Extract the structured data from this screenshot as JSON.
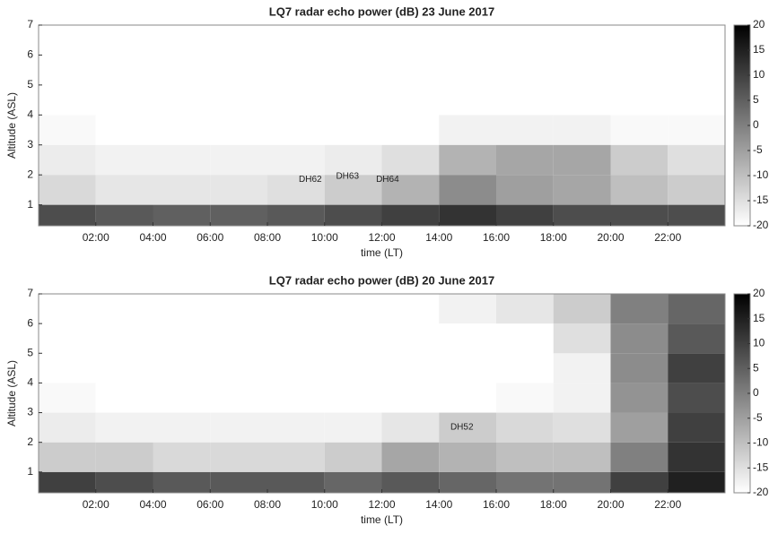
{
  "chart_data": [
    {
      "type": "heatmap",
      "title": "LQ7 radar echo power (dB) 23 June 2017",
      "xlabel": "time (LT)",
      "ylabel": "Altitude (ASL)",
      "xlim": [
        0,
        24
      ],
      "ylim": [
        0.3,
        7
      ],
      "xticks": [
        {
          "value": 2,
          "label": "02:00"
        },
        {
          "value": 4,
          "label": "04:00"
        },
        {
          "value": 6,
          "label": "06:00"
        },
        {
          "value": 8,
          "label": "08:00"
        },
        {
          "value": 10,
          "label": "10:00"
        },
        {
          "value": 12,
          "label": "12:00"
        },
        {
          "value": 14,
          "label": "14:00"
        },
        {
          "value": 16,
          "label": "16:00"
        },
        {
          "value": 18,
          "label": "18:00"
        },
        {
          "value": 20,
          "label": "20:00"
        },
        {
          "value": 22,
          "label": "22:00"
        }
      ],
      "yticks": [
        1,
        2,
        3,
        4,
        5,
        6,
        7
      ],
      "x_bins": [
        0,
        2,
        4,
        6,
        8,
        10,
        12,
        14,
        16,
        18,
        20,
        22,
        24
      ],
      "y_bins": [
        0.3,
        1,
        2,
        3,
        4,
        5,
        6,
        7
      ],
      "z": [
        [
          8,
          6,
          5,
          5,
          6,
          8,
          10,
          12,
          10,
          8,
          8,
          8
        ],
        [
          -14,
          -16,
          -16,
          -16,
          -15,
          -12,
          -8,
          -2,
          -5,
          -6,
          -10,
          -12
        ],
        [
          -17,
          -18,
          -18,
          -18,
          -18,
          -17,
          -15,
          -8,
          -6,
          -6,
          -12,
          -15
        ],
        [
          -19,
          -20,
          -20,
          -20,
          -20,
          -20,
          -20,
          -18,
          -18,
          -18,
          -19,
          -19
        ],
        [
          -20,
          -20,
          -20,
          -20,
          -20,
          -20,
          -20,
          -20,
          -20,
          -20,
          -20,
          -20
        ],
        [
          -20,
          -20,
          -20,
          -20,
          -20,
          -20,
          -20,
          -20,
          -20,
          -20,
          -20,
          -20
        ],
        [
          -20,
          -20,
          -20,
          -20,
          -20,
          -20,
          -20,
          -20,
          -20,
          -20,
          -20,
          -20
        ]
      ],
      "zlim": [
        -20,
        20
      ],
      "zticks": [
        20,
        15,
        10,
        5,
        0,
        -5,
        -10,
        -15,
        -20
      ],
      "colors": [
        "#ffffff",
        "#000000"
      ],
      "annotations": [
        {
          "text": "DH62",
          "x": 9.5,
          "y": 1.85
        },
        {
          "text": "DH63",
          "x": 10.8,
          "y": 1.95
        },
        {
          "text": "DH64",
          "x": 12.2,
          "y": 1.85
        }
      ]
    },
    {
      "type": "heatmap",
      "title": "LQ7 radar echo power (dB) 20 June 2017",
      "xlabel": "time (LT)",
      "ylabel": "Altitude (ASL)",
      "xlim": [
        0,
        24
      ],
      "ylim": [
        0.3,
        7
      ],
      "xticks": [
        {
          "value": 2,
          "label": "02:00"
        },
        {
          "value": 4,
          "label": "04:00"
        },
        {
          "value": 6,
          "label": "06:00"
        },
        {
          "value": 8,
          "label": "08:00"
        },
        {
          "value": 10,
          "label": "10:00"
        },
        {
          "value": 12,
          "label": "12:00"
        },
        {
          "value": 14,
          "label": "14:00"
        },
        {
          "value": 16,
          "label": "16:00"
        },
        {
          "value": 18,
          "label": "18:00"
        },
        {
          "value": 20,
          "label": "20:00"
        },
        {
          "value": 22,
          "label": "22:00"
        }
      ],
      "yticks": [
        1,
        2,
        3,
        4,
        5,
        6,
        7
      ],
      "x_bins": [
        0,
        2,
        4,
        6,
        8,
        10,
        12,
        14,
        16,
        18,
        20,
        22,
        24
      ],
      "y_bins": [
        0.3,
        1,
        2,
        3,
        4,
        5,
        6,
        7
      ],
      "z": [
        [
          10,
          8,
          6,
          6,
          6,
          4,
          6,
          4,
          2,
          2,
          10,
          15
        ],
        [
          -12,
          -12,
          -14,
          -14,
          -14,
          -12,
          -6,
          -8,
          -10,
          -10,
          0,
          12
        ],
        [
          -17,
          -18,
          -18,
          -18,
          -18,
          -18,
          -16,
          -12,
          -14,
          -15,
          -5,
          10
        ],
        [
          -19,
          -20,
          -20,
          -20,
          -20,
          -20,
          -20,
          -20,
          -19,
          -18,
          -3,
          8
        ],
        [
          -20,
          -20,
          -20,
          -20,
          -20,
          -20,
          -20,
          -20,
          -20,
          -18,
          -2,
          10
        ],
        [
          -20,
          -20,
          -20,
          -20,
          -20,
          -20,
          -20,
          -20,
          -20,
          -15,
          -2,
          6
        ],
        [
          -20,
          -20,
          -20,
          -20,
          -20,
          -20,
          -20,
          -18,
          -16,
          -12,
          0,
          4
        ]
      ],
      "zlim": [
        -20,
        20
      ],
      "zticks": [
        20,
        15,
        10,
        5,
        0,
        -5,
        -10,
        -15,
        -20
      ],
      "colors": [
        "#ffffff",
        "#000000"
      ],
      "annotations": [
        {
          "text": "DH52",
          "x": 14.8,
          "y": 2.5
        }
      ]
    }
  ]
}
